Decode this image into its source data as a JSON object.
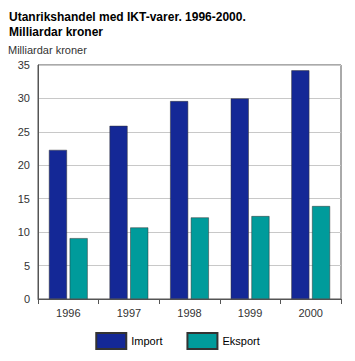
{
  "chart_data": {
    "type": "bar",
    "title": "Utanrikshandel med IKT-varer. 1996-2000.\nMilliardar kroner",
    "ylabel": "Milliardar kroner",
    "categories": [
      "1996",
      "1997",
      "1998",
      "1999",
      "2000"
    ],
    "series": [
      {
        "name": "Import",
        "color": "#142896",
        "values": [
          22.3,
          25.9,
          29.6,
          30.0,
          34.2
        ]
      },
      {
        "name": "Eksport",
        "color": "#009b9b",
        "values": [
          9.1,
          10.7,
          12.2,
          12.4,
          13.9
        ]
      }
    ],
    "ylim": [
      0,
      35
    ],
    "yticks": [
      0,
      5,
      10,
      15,
      20,
      25,
      30,
      35
    ],
    "grid": true,
    "legend": "bottom"
  }
}
